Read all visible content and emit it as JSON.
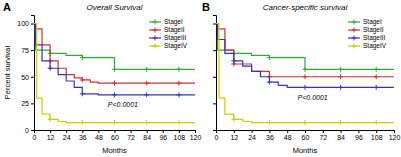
{
  "chart_data": [
    {
      "type": "step",
      "title": "Overall Survival",
      "xlabel": "Months",
      "ylabel": "Percent survival",
      "xlim": [
        0,
        120
      ],
      "ylim": [
        0,
        108
      ],
      "xticks": [
        0,
        12,
        24,
        36,
        48,
        60,
        72,
        84,
        96,
        108,
        120
      ],
      "yticks": [
        0,
        25,
        50,
        75,
        100
      ],
      "legend": "upper right",
      "annotations": [
        {
          "text": "A"
        },
        {
          "text": "P<0.0001",
          "x": 55,
          "y": 22
        }
      ],
      "series": [
        {
          "name": "StageI",
          "color": "#33aa33",
          "marker": "plus",
          "x": [
            0,
            1,
            12,
            24,
            36,
            48,
            60,
            72,
            84,
            96,
            108,
            120
          ],
          "values": [
            100,
            75,
            72,
            70,
            68,
            68,
            57,
            57,
            57,
            57,
            57,
            57
          ],
          "censor_x": [
            12,
            36,
            60,
            84,
            108
          ],
          "censor_values": [
            72,
            68,
            57,
            57,
            57
          ]
        },
        {
          "name": "StageII",
          "color": "#cc3333",
          "marker": "plus",
          "x": [
            0,
            1,
            6,
            12,
            18,
            24,
            30,
            36,
            42,
            48,
            60,
            72,
            84,
            96,
            108,
            120
          ],
          "values": [
            100,
            95,
            80,
            65,
            58,
            52,
            49,
            47,
            45,
            44,
            44,
            44,
            44,
            44,
            44,
            44
          ],
          "censor_x": [
            12,
            36,
            60,
            84,
            108
          ],
          "censor_values": [
            65,
            47,
            44,
            44,
            44
          ]
        },
        {
          "name": "StageIII",
          "color": "#3333cc",
          "marker": "plus",
          "x": [
            0,
            1,
            6,
            12,
            18,
            24,
            30,
            36,
            48,
            60,
            72,
            84,
            96,
            108,
            120
          ],
          "values": [
            100,
            80,
            65,
            58,
            52,
            46,
            40,
            34,
            33,
            33,
            33,
            33,
            33,
            33,
            33
          ],
          "censor_x": [
            12,
            36,
            60,
            84,
            108
          ],
          "censor_values": [
            58,
            34,
            33,
            33,
            33
          ]
        },
        {
          "name": "StageIV",
          "color": "#cccc00",
          "marker": "plus",
          "x": [
            0,
            2,
            6,
            12,
            18,
            24,
            36,
            48,
            60,
            72,
            84,
            96,
            108,
            120
          ],
          "values": [
            100,
            30,
            15,
            10,
            8,
            7,
            7,
            7,
            7,
            7,
            7,
            7,
            7,
            7
          ],
          "censor_x": [
            12,
            36,
            60,
            84,
            108
          ],
          "censor_values": [
            10,
            7,
            7,
            7,
            7
          ]
        }
      ]
    },
    {
      "type": "step",
      "title": "Cancer-specific survival",
      "xlabel": "Months",
      "xlim": [
        0,
        120
      ],
      "ylim": [
        0,
        108
      ],
      "xticks": [
        0,
        12,
        24,
        36,
        48,
        60,
        72,
        84,
        96,
        108,
        120
      ],
      "yticks": [
        0,
        25,
        50,
        75,
        100
      ],
      "tick_labels": "x",
      "legend": "upper right",
      "annotations": [
        {
          "text": "B"
        },
        {
          "text": "P<0.0001",
          "x": 55,
          "y": 28
        }
      ],
      "series": [
        {
          "name": "StageI",
          "color": "#33aa33",
          "marker": "plus",
          "x": [
            0,
            1,
            12,
            24,
            36,
            48,
            60,
            72,
            84,
            96,
            108,
            120
          ],
          "values": [
            100,
            75,
            72,
            70,
            68,
            68,
            57,
            57,
            57,
            57,
            57,
            57
          ],
          "censor_x": [
            12,
            36,
            60,
            84,
            108
          ],
          "censor_values": [
            72,
            68,
            57,
            57,
            57
          ]
        },
        {
          "name": "StageII",
          "color": "#cc3333",
          "marker": "plus",
          "x": [
            0,
            1,
            6,
            12,
            24,
            36,
            48,
            60,
            72,
            84,
            96,
            108,
            120
          ],
          "values": [
            100,
            95,
            75,
            62,
            55,
            50,
            50,
            50,
            50,
            50,
            50,
            50,
            50
          ],
          "censor_x": [
            12,
            36,
            60,
            84,
            108
          ],
          "censor_values": [
            62,
            50,
            50,
            50,
            50
          ]
        },
        {
          "name": "StageIII",
          "color": "#3333cc",
          "marker": "plus",
          "x": [
            0,
            1,
            6,
            12,
            18,
            24,
            30,
            36,
            42,
            48,
            60,
            72,
            84,
            96,
            108,
            120
          ],
          "values": [
            100,
            85,
            72,
            65,
            60,
            55,
            50,
            45,
            42,
            40,
            40,
            40,
            40,
            40,
            40,
            40
          ],
          "censor_x": [
            12,
            36,
            60,
            84,
            108
          ],
          "censor_values": [
            65,
            45,
            40,
            40,
            40
          ]
        },
        {
          "name": "StageIV",
          "color": "#cccc00",
          "marker": "plus",
          "x": [
            0,
            2,
            6,
            12,
            18,
            24,
            36,
            48,
            60,
            72,
            84,
            96,
            108,
            120
          ],
          "values": [
            100,
            30,
            15,
            10,
            8,
            7,
            7,
            7,
            7,
            7,
            7,
            7,
            7,
            7
          ],
          "censor_x": [
            12,
            36,
            60,
            84,
            108
          ],
          "censor_values": [
            10,
            7,
            7,
            7,
            7
          ]
        }
      ]
    }
  ]
}
